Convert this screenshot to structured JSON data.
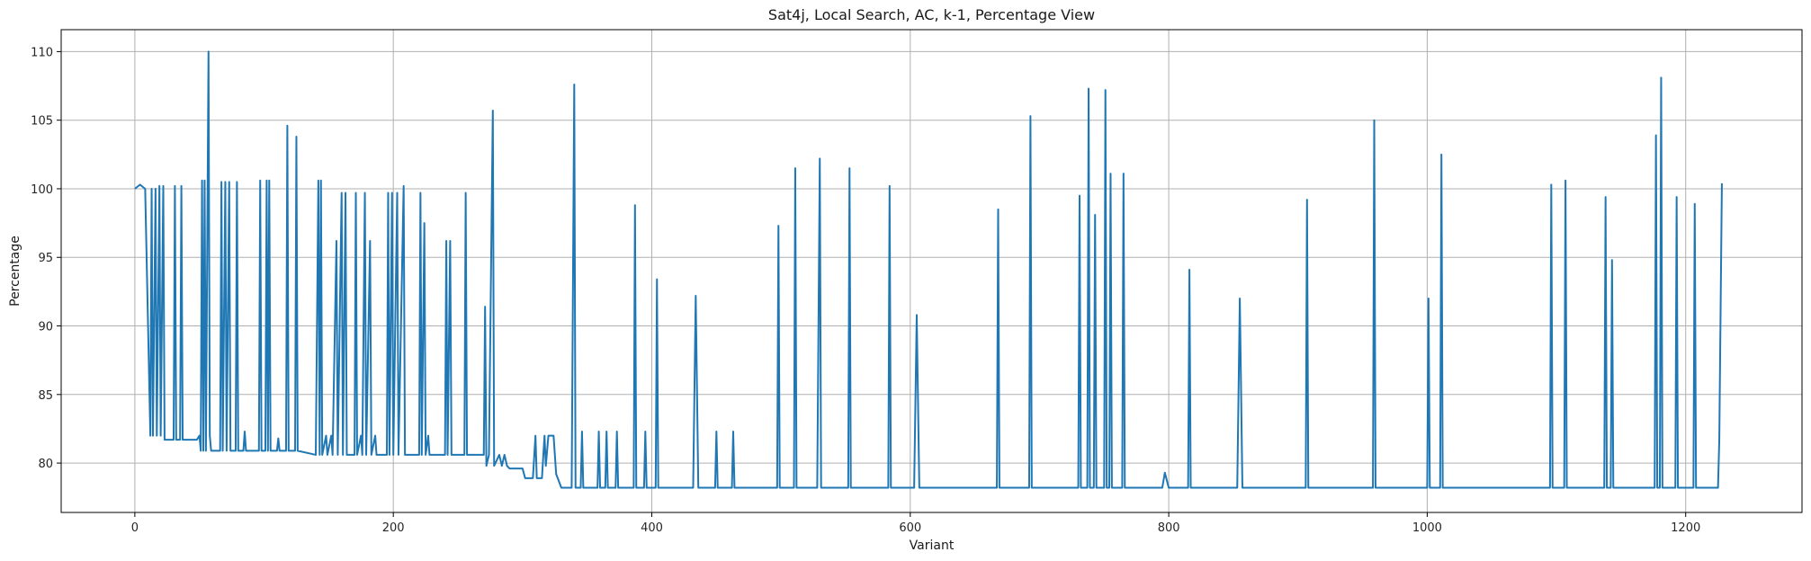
{
  "chart_data": {
    "type": "line",
    "title": "Sat4j, Local Search, AC, k-1, Percentage View",
    "xlabel": "Variant",
    "ylabel": "Percentage",
    "xlim": [
      -57,
      1290
    ],
    "ylim": [
      76.4,
      111.6
    ],
    "xticks": [
      0,
      200,
      400,
      600,
      800,
      1000,
      1200
    ],
    "yticks": [
      80,
      85,
      90,
      95,
      100,
      105,
      110
    ],
    "grid": true,
    "line_color": "#1f77b4",
    "baseline_segments": [
      {
        "x_start": 0,
        "x_end": 8,
        "y": 100.0
      },
      {
        "x_start": 8,
        "x_end": 48,
        "y": 81.7
      },
      {
        "x_start": 48,
        "x_end": 140,
        "y": 80.9
      },
      {
        "x_start": 140,
        "x_end": 290,
        "y": 80.6
      },
      {
        "x_start": 290,
        "x_end": 330,
        "y": 79.6
      },
      {
        "x_start": 330,
        "x_end": 1228,
        "y": 78.2
      }
    ],
    "series": [
      {
        "points": [
          [
            0,
            100
          ],
          [
            4,
            100.3
          ],
          [
            8,
            100
          ],
          [
            12,
            82
          ],
          [
            13,
            100
          ],
          [
            14,
            82
          ],
          [
            16,
            100
          ],
          [
            17,
            82
          ],
          [
            19,
            100.2
          ],
          [
            20,
            82
          ],
          [
            22,
            100.2
          ],
          [
            23,
            81.7
          ],
          [
            30,
            81.7
          ],
          [
            31,
            100.2
          ],
          [
            32,
            81.7
          ],
          [
            35,
            81.7
          ],
          [
            36,
            100.2
          ],
          [
            37,
            81.7
          ],
          [
            48,
            81.7
          ],
          [
            50,
            82
          ],
          [
            51,
            80.9
          ],
          [
            52,
            100.6
          ],
          [
            53,
            80.9
          ],
          [
            54,
            100.6
          ],
          [
            55,
            80.9
          ],
          [
            57,
            110
          ],
          [
            58,
            82
          ],
          [
            59,
            80.9
          ],
          [
            66,
            80.9
          ],
          [
            67,
            100.5
          ],
          [
            68,
            80.9
          ],
          [
            70,
            100.5
          ],
          [
            71,
            80.9
          ],
          [
            73,
            100.5
          ],
          [
            74,
            80.9
          ],
          [
            78,
            80.9
          ],
          [
            79,
            100.5
          ],
          [
            80,
            80.9
          ],
          [
            84,
            80.9
          ],
          [
            85,
            82.3
          ],
          [
            86,
            80.9
          ],
          [
            96,
            80.9
          ],
          [
            97,
            100.6
          ],
          [
            98,
            80.9
          ],
          [
            101,
            80.9
          ],
          [
            102,
            100.6
          ],
          [
            103,
            80.9
          ],
          [
            104,
            100.6
          ],
          [
            105,
            80.9
          ],
          [
            110,
            80.9
          ],
          [
            111,
            81.8
          ],
          [
            112,
            80.9
          ],
          [
            117,
            80.9
          ],
          [
            118,
            104.6
          ],
          [
            119,
            80.9
          ],
          [
            124,
            80.9
          ],
          [
            125,
            103.8
          ],
          [
            126,
            80.9
          ],
          [
            140,
            80.6
          ],
          [
            142,
            100.6
          ],
          [
            143,
            80.6
          ],
          [
            144,
            100.6
          ],
          [
            145,
            80.6
          ],
          [
            148,
            82
          ],
          [
            149,
            80.6
          ],
          [
            152,
            82
          ],
          [
            153,
            80.6
          ],
          [
            156,
            96.2
          ],
          [
            157,
            80.6
          ],
          [
            160,
            99.7
          ],
          [
            161,
            80.6
          ],
          [
            163,
            99.7
          ],
          [
            164,
            80.6
          ],
          [
            170,
            80.6
          ],
          [
            171,
            99.7
          ],
          [
            172,
            80.6
          ],
          [
            175,
            82
          ],
          [
            176,
            80.6
          ],
          [
            178,
            99.7
          ],
          [
            179,
            80.6
          ],
          [
            182,
            96.2
          ],
          [
            183,
            80.6
          ],
          [
            186,
            82
          ],
          [
            187,
            80.6
          ],
          [
            195,
            80.6
          ],
          [
            196,
            99.7
          ],
          [
            197,
            80.6
          ],
          [
            199,
            99.7
          ],
          [
            200,
            80.6
          ],
          [
            203,
            99.7
          ],
          [
            204,
            80.6
          ],
          [
            208,
            100.2
          ],
          [
            209,
            80.6
          ],
          [
            220,
            80.6
          ],
          [
            221,
            99.7
          ],
          [
            222,
            80.6
          ],
          [
            224,
            97.5
          ],
          [
            225,
            80.6
          ],
          [
            227,
            82
          ],
          [
            228,
            80.6
          ],
          [
            240,
            80.6
          ],
          [
            241,
            96.2
          ],
          [
            242,
            80.6
          ],
          [
            244,
            96.2
          ],
          [
            245,
            80.6
          ],
          [
            255,
            80.6
          ],
          [
            256,
            99.7
          ],
          [
            257,
            80.6
          ],
          [
            270,
            80.6
          ],
          [
            271,
            91.4
          ],
          [
            272,
            79.8
          ],
          [
            274,
            80.6
          ],
          [
            277,
            105.7
          ],
          [
            278,
            79.8
          ],
          [
            282,
            80.6
          ],
          [
            284,
            79.8
          ],
          [
            286,
            80.6
          ],
          [
            288,
            79.8
          ],
          [
            290,
            79.6
          ],
          [
            300,
            79.6
          ],
          [
            302,
            78.9
          ],
          [
            308,
            78.9
          ],
          [
            310,
            82
          ],
          [
            311,
            78.9
          ],
          [
            315,
            78.9
          ],
          [
            317,
            82
          ],
          [
            318,
            79.8
          ],
          [
            320,
            82
          ],
          [
            324,
            82
          ],
          [
            326,
            79.2
          ],
          [
            330,
            78.2
          ],
          [
            338,
            78.2
          ],
          [
            340,
            107.6
          ],
          [
            341,
            78.2
          ],
          [
            345,
            78.2
          ],
          [
            346,
            82.3
          ],
          [
            347,
            78.2
          ],
          [
            358,
            78.2
          ],
          [
            359,
            82.3
          ],
          [
            360,
            78.2
          ],
          [
            364,
            78.2
          ],
          [
            365,
            82.3
          ],
          [
            366,
            78.2
          ],
          [
            372,
            78.2
          ],
          [
            373,
            82.3
          ],
          [
            374,
            78.2
          ],
          [
            386,
            78.2
          ],
          [
            387,
            98.8
          ],
          [
            388,
            78.2
          ],
          [
            394,
            78.2
          ],
          [
            395,
            82.3
          ],
          [
            396,
            78.2
          ],
          [
            403,
            78.2
          ],
          [
            404,
            93.4
          ],
          [
            405,
            78.2
          ],
          [
            432,
            78.2
          ],
          [
            434,
            92.2
          ],
          [
            436,
            78.2
          ],
          [
            449,
            78.2
          ],
          [
            450,
            82.3
          ],
          [
            451,
            78.2
          ],
          [
            462,
            78.2
          ],
          [
            463,
            82.3
          ],
          [
            464,
            78.2
          ],
          [
            497,
            78.2
          ],
          [
            498,
            97.3
          ],
          [
            499,
            78.2
          ],
          [
            510,
            78.2
          ],
          [
            511,
            101.5
          ],
          [
            512,
            78.2
          ],
          [
            528,
            78.2
          ],
          [
            530,
            102.2
          ],
          [
            531,
            78.2
          ],
          [
            552,
            78.2
          ],
          [
            553,
            101.5
          ],
          [
            554,
            78.2
          ],
          [
            583,
            78.2
          ],
          [
            584,
            100.2
          ],
          [
            585,
            78.2
          ],
          [
            603,
            78.2
          ],
          [
            605,
            90.8
          ],
          [
            607,
            78.2
          ],
          [
            667,
            78.2
          ],
          [
            668,
            98.5
          ],
          [
            669,
            78.2
          ],
          [
            692,
            78.2
          ],
          [
            693,
            105.3
          ],
          [
            694,
            78.2
          ],
          [
            730,
            78.2
          ],
          [
            731,
            99.5
          ],
          [
            732,
            78.2
          ],
          [
            737,
            78.2
          ],
          [
            738,
            107.3
          ],
          [
            739,
            78.2
          ],
          [
            742,
            78.2
          ],
          [
            743,
            98.1
          ],
          [
            744,
            78.2
          ],
          [
            750,
            78.2
          ],
          [
            751,
            107.2
          ],
          [
            752,
            78.2
          ],
          [
            754,
            78.2
          ],
          [
            755,
            101.1
          ],
          [
            756,
            78.2
          ],
          [
            764,
            78.2
          ],
          [
            765,
            101.1
          ],
          [
            766,
            78.2
          ],
          [
            795,
            78.2
          ],
          [
            797,
            79.3
          ],
          [
            800,
            78.2
          ],
          [
            815,
            78.2
          ],
          [
            816,
            94.1
          ],
          [
            817,
            78.2
          ],
          [
            853,
            78.2
          ],
          [
            855,
            92
          ],
          [
            857,
            78.2
          ],
          [
            906,
            78.2
          ],
          [
            907,
            99.2
          ],
          [
            908,
            78.2
          ],
          [
            958,
            78.2
          ],
          [
            959,
            105
          ],
          [
            960,
            78.2
          ],
          [
            1000,
            78.2
          ],
          [
            1001,
            92
          ],
          [
            1002,
            78.2
          ],
          [
            1010,
            78.2
          ],
          [
            1011,
            102.5
          ],
          [
            1012,
            78.2
          ],
          [
            1095,
            78.2
          ],
          [
            1096,
            100.3
          ],
          [
            1097,
            78.2
          ],
          [
            1106,
            78.2
          ],
          [
            1107,
            100.6
          ],
          [
            1108,
            78.2
          ],
          [
            1137,
            78.2
          ],
          [
            1138,
            99.4
          ],
          [
            1139,
            78.2
          ],
          [
            1142,
            78.2
          ],
          [
            1143,
            94.8
          ],
          [
            1144,
            78.2
          ],
          [
            1176,
            78.2
          ],
          [
            1177,
            103.9
          ],
          [
            1178,
            78.2
          ],
          [
            1180,
            78.2
          ],
          [
            1181,
            108.1
          ],
          [
            1182,
            78.2
          ],
          [
            1192,
            78.2
          ],
          [
            1193,
            99.4
          ],
          [
            1194,
            78.2
          ],
          [
            1206,
            78.2
          ],
          [
            1207,
            98.9
          ],
          [
            1208,
            78.2
          ],
          [
            1225,
            78.2
          ],
          [
            1226,
            81.7
          ],
          [
            1228,
            100.4
          ]
        ]
      }
    ]
  }
}
